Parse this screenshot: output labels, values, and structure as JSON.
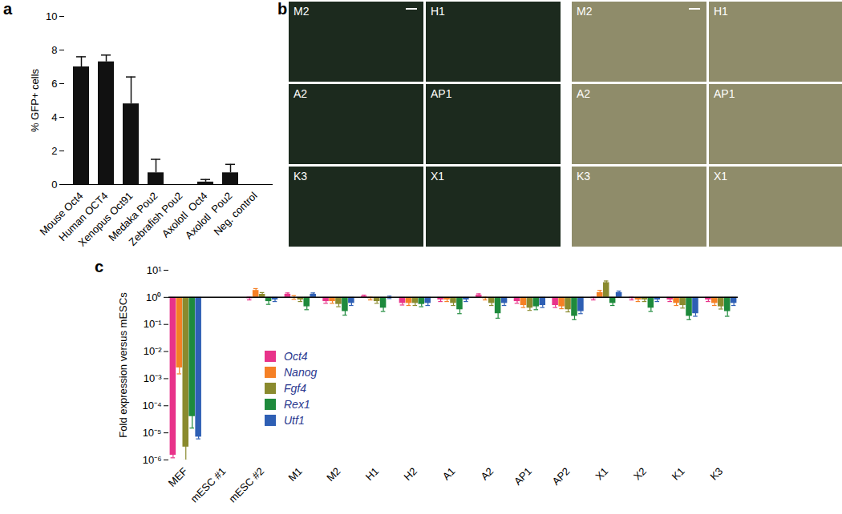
{
  "chart_data": [
    {
      "panel": "a",
      "type": "bar",
      "categories": [
        "Mouse Oct4",
        "Human OCT4",
        "Xenopus Oct91",
        "Medaka Pou2",
        "Zebrafish Pou2",
        "Axolotl  Oct4",
        "Axolotl  Pou2",
        "Neg. control"
      ],
      "values": [
        7.0,
        7.3,
        4.8,
        0.7,
        0,
        0.15,
        0.7,
        0
      ],
      "errors": [
        0.6,
        0.4,
        1.6,
        0.8,
        0,
        0.15,
        0.5,
        0
      ],
      "color": "#111111",
      "ylabel": "% GFP+ cells",
      "ylim": [
        0,
        10
      ],
      "yticks": [
        0,
        2,
        4,
        6,
        8,
        10
      ]
    },
    {
      "panel": "b",
      "type": "image_grid",
      "groups": [
        {
          "color": "#1c2a1e",
          "labels": [
            "M2",
            "H1",
            "A2",
            "AP1",
            "K3",
            "X1"
          ]
        },
        {
          "color": "#8f8c6a",
          "labels": [
            "M2",
            "H1",
            "A2",
            "AP1",
            "K3",
            "X1"
          ]
        }
      ]
    },
    {
      "panel": "c",
      "type": "bar",
      "log": "y",
      "legend": "left",
      "categories": [
        "MEF",
        "mESC #1",
        "mESC #2",
        "M1",
        "M2",
        "H1",
        "H2",
        "A1",
        "A2",
        "AP1",
        "AP2",
        "X1",
        "X2",
        "K1",
        "K3"
      ],
      "ylabel": "Fold expression versus mESCs",
      "ylim": [
        1e-06,
        10
      ],
      "yticks": [
        {
          "value": 1e-06,
          "label": "10⁻⁶"
        },
        {
          "value": 1e-05,
          "label": "10⁻⁵"
        },
        {
          "value": 0.0001,
          "label": "10⁻⁴"
        },
        {
          "value": 0.001,
          "label": "10⁻³"
        },
        {
          "value": 0.01,
          "label": "10⁻²"
        },
        {
          "value": 0.1,
          "label": "10⁻¹"
        },
        {
          "value": 1,
          "label": "10⁰"
        },
        {
          "value": 10,
          "label": "10¹"
        }
      ],
      "series": [
        {
          "name": "Oct4",
          "color": "#e8338a",
          "values": [
            1.5e-06,
            1,
            0.9,
            1.3,
            0.7,
            1.1,
            0.6,
            0.8,
            1.2,
            0.7,
            0.5,
            0.9,
            0.9,
            0.8,
            0.8
          ],
          "errors": [
            3e-07,
            0,
            0.1,
            0.15,
            0.1,
            0.1,
            0.08,
            0.1,
            0.15,
            0.1,
            0.08,
            0.1,
            0.1,
            0.1,
            0.1
          ]
        },
        {
          "name": "Nanog",
          "color": "#f58025",
          "values": [
            0.0025,
            1,
            1.8,
            1.0,
            0.7,
            0.9,
            0.6,
            0.8,
            0.9,
            0.5,
            0.45,
            1.5,
            0.8,
            0.6,
            0.6
          ],
          "errors": [
            0.001,
            0,
            0.3,
            0.15,
            0.1,
            0.1,
            0.1,
            0.1,
            0.1,
            0.08,
            0.07,
            0.3,
            0.1,
            0.1,
            0.1
          ]
        },
        {
          "name": "Fgf4",
          "color": "#8a8a2e",
          "values": [
            3e-06,
            1,
            1.3,
            0.8,
            0.55,
            0.7,
            0.6,
            0.6,
            0.6,
            0.4,
            0.35,
            3.5,
            0.8,
            0.5,
            0.45
          ],
          "errors": [
            2e-06,
            0,
            0.2,
            0.1,
            0.1,
            0.1,
            0.1,
            0.1,
            0.1,
            0.07,
            0.06,
            0.5,
            0.1,
            0.1,
            0.08
          ]
        },
        {
          "name": "Rex1",
          "color": "#1e8a3c",
          "values": [
            4e-05,
            1,
            0.7,
            0.45,
            0.3,
            0.4,
            0.55,
            0.35,
            0.25,
            0.45,
            0.2,
            0.6,
            0.4,
            0.2,
            0.3
          ],
          "errors": [
            2.5e-05,
            0,
            0.15,
            0.1,
            0.08,
            0.1,
            0.1,
            0.1,
            0.08,
            0.1,
            0.05,
            0.1,
            0.1,
            0.05,
            0.1
          ]
        },
        {
          "name": "Utf1",
          "color": "#2e5fb4",
          "values": [
            7e-06,
            1,
            0.8,
            1.3,
            0.6,
            1.0,
            0.6,
            0.8,
            0.6,
            0.5,
            0.3,
            1.5,
            0.8,
            0.25,
            0.6
          ],
          "errors": [
            1e-06,
            0,
            0.1,
            0.15,
            0.1,
            0.1,
            0.1,
            0.1,
            0.1,
            0.08,
            0.05,
            0.2,
            0.1,
            0.05,
            0.1
          ]
        }
      ]
    }
  ]
}
